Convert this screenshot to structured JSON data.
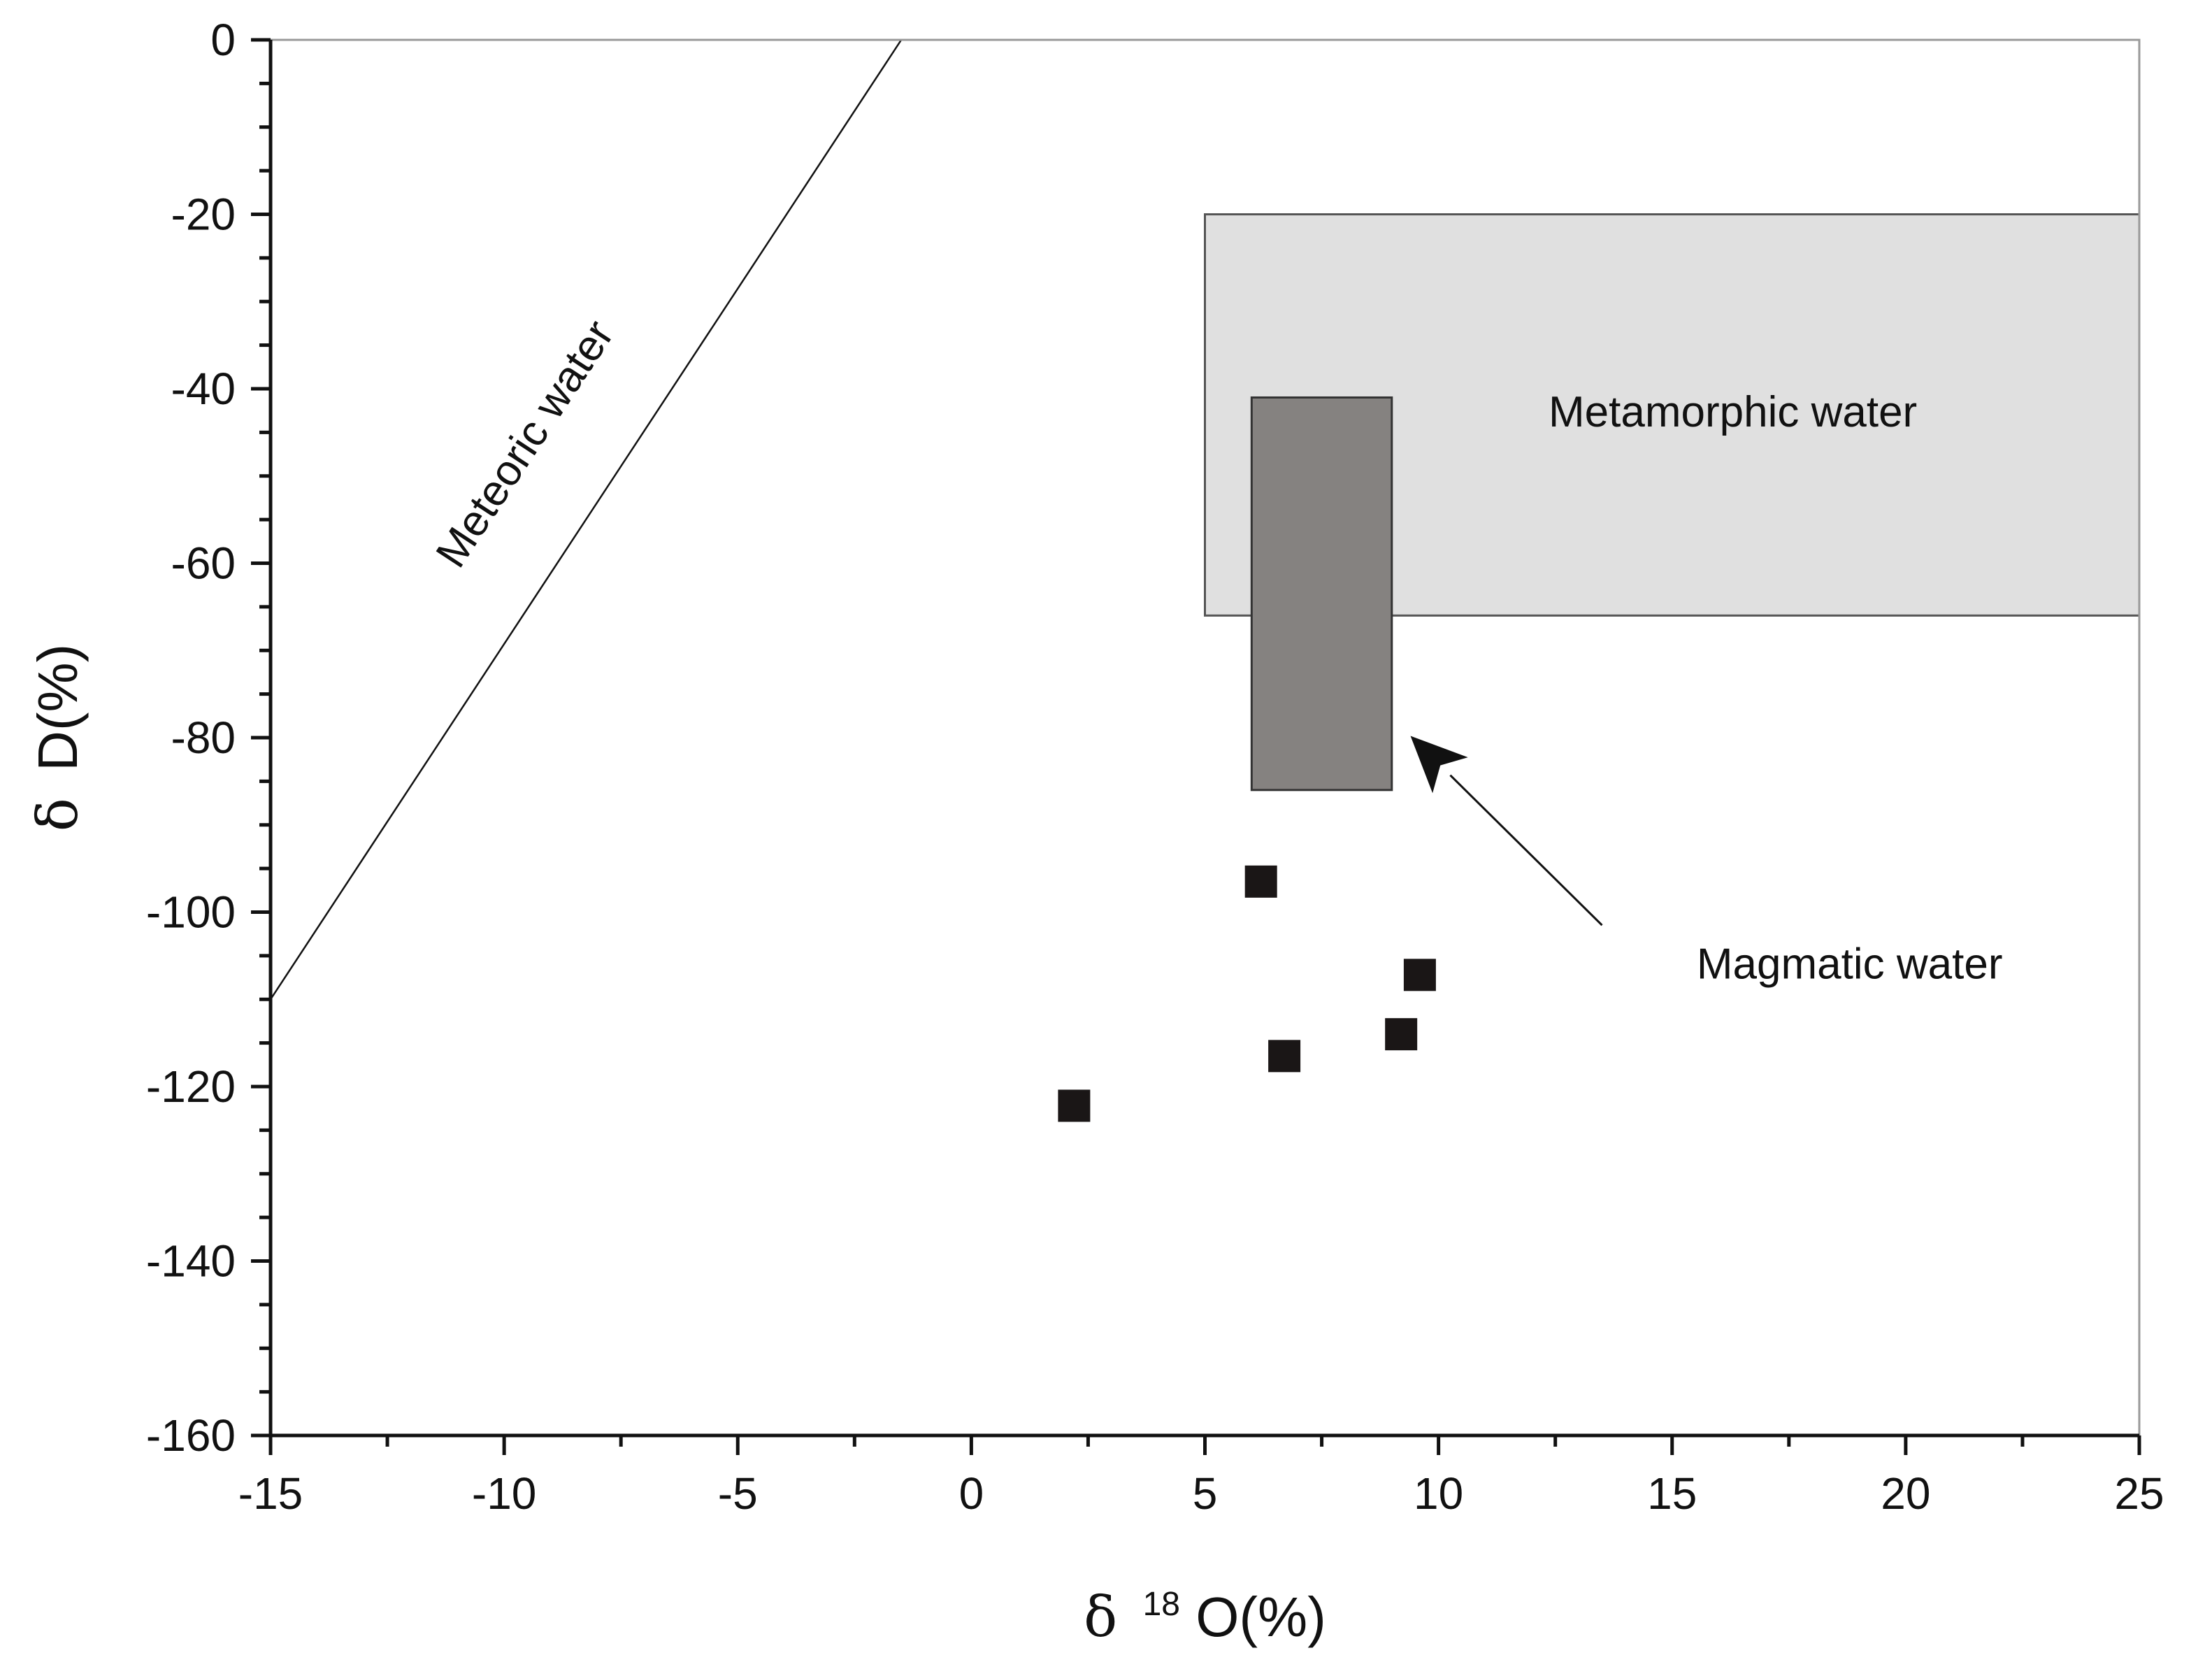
{
  "chart_data": {
    "type": "scatter",
    "title": "",
    "xlabel": {
      "symbol": "δ",
      "sup": "18",
      "text": "O(%)"
    },
    "ylabel": {
      "symbol": "δ",
      "text": "D(%)"
    },
    "xlim": [
      -15,
      25
    ],
    "ylim": [
      -160,
      0
    ],
    "x_ticks": [
      -15,
      -10,
      -5,
      0,
      5,
      10,
      15,
      20,
      25
    ],
    "y_ticks": [
      0,
      -20,
      -40,
      -60,
      -80,
      -100,
      -120,
      -140,
      -160
    ],
    "x_minor_step": 2.5,
    "y_minor_step": 5,
    "series": [
      {
        "name": "samples",
        "marker": "square",
        "color": "#1a1616",
        "points": [
          {
            "x": 2.2,
            "y": -122.2
          },
          {
            "x": 6.2,
            "y": -96.5
          },
          {
            "x": 6.7,
            "y": -116.5
          },
          {
            "x": 9.2,
            "y": -114.0
          },
          {
            "x": 9.6,
            "y": -107.2
          }
        ]
      }
    ],
    "regions": [
      {
        "name": "metamorphic-water-box",
        "label": "Metamorphic water",
        "x": [
          5,
          25
        ],
        "y": [
          -66,
          -20
        ],
        "fill": "#e0e0e0",
        "stroke": "#555555"
      },
      {
        "name": "magmatic-water-box",
        "label": "Magmatic water",
        "x": [
          6,
          9
        ],
        "y": [
          -86,
          -41
        ],
        "fill": "#858280",
        "stroke": "#333333"
      }
    ],
    "lines": [
      {
        "name": "meteoric-water-line",
        "label": "Meteoric water",
        "from": {
          "x": -15,
          "y": -110
        },
        "to": {
          "x": -1.5,
          "y": 0
        }
      }
    ],
    "annotations": {
      "metamorphic": {
        "text": "Metamorphic water",
        "x": 16.3,
        "y": -43
      },
      "magmatic": {
        "text": "Magmatic water",
        "x": 18.8,
        "y": -106.3
      },
      "magmatic_arrow": {
        "from": {
          "x": 13.5,
          "y": -101.5
        },
        "to": {
          "x": 9.4,
          "y": -79.8
        }
      },
      "meteoric": {
        "text": "Meteoric water",
        "x": -9.5,
        "y": -46.5
      }
    }
  }
}
